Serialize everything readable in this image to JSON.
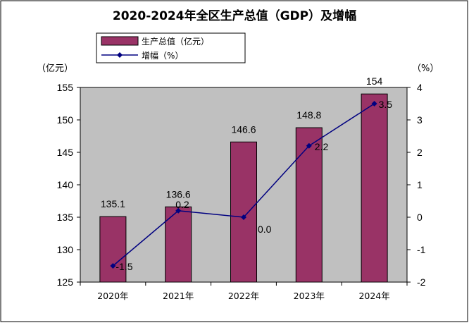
{
  "chart_data": {
    "type": "bar",
    "title": "2020-2024年全区生产总值（GDP）及增幅",
    "categories": [
      "2020年",
      "2021年",
      "2022年",
      "2023年",
      "2024年"
    ],
    "left_unit": "（亿元）",
    "right_unit": "（%）",
    "ylim_left": [
      125,
      155
    ],
    "ylim_right": [
      -2,
      4
    ],
    "left_ticks": [
      "125",
      "130",
      "135",
      "140",
      "145",
      "150",
      "155"
    ],
    "right_ticks": [
      "-2",
      "-1",
      "0",
      "1",
      "2",
      "3",
      "4"
    ],
    "grid": false,
    "legend_position": "top-left",
    "series": [
      {
        "name": "生产总值（亿元）",
        "kind": "bar",
        "axis": "left",
        "values": [
          135.1,
          136.6,
          146.6,
          148.8,
          154
        ],
        "labels": [
          "135.1",
          "136.6",
          "146.6",
          "148.8",
          "154"
        ],
        "color": "#993366"
      },
      {
        "name": "增幅（%）",
        "kind": "line",
        "axis": "right",
        "values": [
          -1.5,
          0.2,
          0.0,
          2.2,
          3.5
        ],
        "labels": [
          "-1.5",
          "0.2",
          "0.0",
          "2.2",
          "3.5"
        ],
        "color": "#000080"
      }
    ],
    "plot_background": "#c0c0c0"
  }
}
